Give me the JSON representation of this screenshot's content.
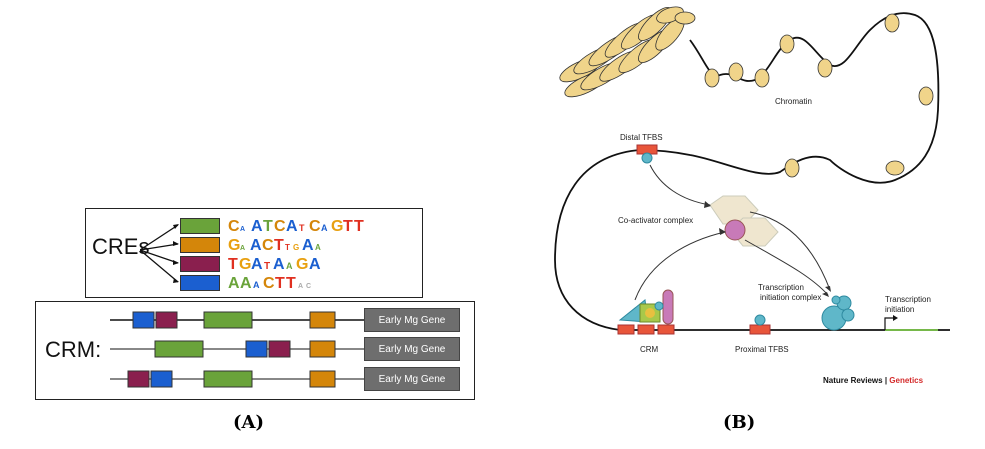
{
  "panel_a": {
    "cres_label": "CREs",
    "crm_label": "CRM:",
    "motifs": [
      {
        "seq": "C_ATCA_C_GTT",
        "color": "#6aa33a"
      },
      {
        "seq": "G_ACT__A_",
        "color": "#d4860a"
      },
      {
        "seq": "TGA_A_GA",
        "color": "#8a1f4e"
      },
      {
        "seq": "AA_CTT__",
        "color": "#1b5fd0"
      }
    ],
    "gene_label": "Early Mg Gene",
    "caption": "(A)"
  },
  "panel_b": {
    "chromatin_label": "Chromatin",
    "distal_tfbs_label": "Distal TFBS",
    "coactivator_label": "Co-activator complex",
    "transcription_initiation_complex_label": "Transcription initiation complex",
    "transcription_initiation_label": "Transcription initiation",
    "crm_label": "CRM",
    "proximal_tfbs_label": "Proximal TFBS",
    "journal_label": "Nature Reviews",
    "journal_sep": " | ",
    "journal_section": "Genetics",
    "caption": "(B)"
  },
  "colors": {
    "green": "#6aa33a",
    "orange": "#d4860a",
    "maroon": "#8a1f4e",
    "blue": "#1b5fd0",
    "gene_gray": "#6e6e6e",
    "tfbs_red": "#e8553a",
    "protein_teal": "#5fb7c9",
    "coactivator_pink": "#c87ab8",
    "nucleosome_yellow": "#f0d48a",
    "journal_red": "#d42a2a"
  }
}
